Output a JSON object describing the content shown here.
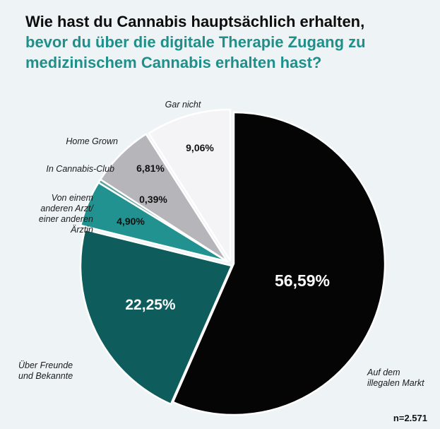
{
  "title": {
    "line1": "Wie hast du Cannabis hauptsächlich erhalten,",
    "line2": "bevor du über die digitale Therapie Zugang zu",
    "line3": "medizinischem Cannabis erhalten hast?"
  },
  "sample_size": "n=2.571",
  "chart_data": {
    "type": "pie",
    "title": "Wie hast du Cannabis hauptsächlich erhalten, bevor du über die digitale Therapie Zugang zu medizinischem Cannabis erhalten hast?",
    "slices": [
      {
        "label": "Auf dem illegalen Markt",
        "lines": [
          "Auf dem",
          "illegalen Markt"
        ],
        "value": 56.59,
        "display": "56,59%",
        "color": "#050505",
        "text_color": "#ffffff"
      },
      {
        "label": "Über Freunde und Bekannte",
        "lines": [
          "Über Freunde",
          "und Bekannte"
        ],
        "value": 22.25,
        "display": "22,25%",
        "color": "#0f5c5c",
        "text_color": "#ffffff"
      },
      {
        "label": "Von einem anderen Arzt/ einer anderen Ärztin",
        "lines": [
          "Von einem",
          "anderen Arzt/",
          "einer anderen",
          "Ärztin"
        ],
        "value": 4.9,
        "display": "4,90%",
        "color": "#21928f",
        "text_color": "#111111"
      },
      {
        "label": "In Cannabis-Club",
        "lines": [
          "In Cannabis-Club"
        ],
        "value": 0.39,
        "display": "0,39%",
        "color": "#5fa39e",
        "text_color": "#111111"
      },
      {
        "label": "Home Grown",
        "lines": [
          "Home Grown"
        ],
        "value": 6.81,
        "display": "6,81%",
        "color": "#b5b5ba",
        "text_color": "#111111"
      },
      {
        "label": "Gar nicht",
        "lines": [
          "Gar nicht"
        ],
        "value": 9.06,
        "display": "9,06%",
        "color": "#f4f4f6",
        "text_color": "#111111"
      }
    ]
  }
}
